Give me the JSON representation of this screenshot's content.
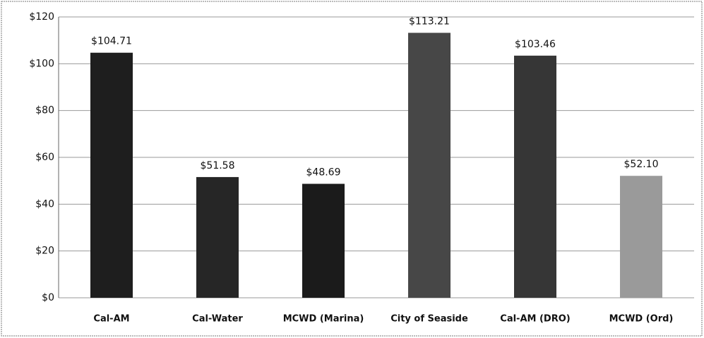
{
  "chart_data": {
    "type": "bar",
    "categories": [
      "Cal-AM",
      "Cal-Water",
      "MCWD (Marina)",
      "City of Seaside",
      "Cal-AM (DRO)",
      "MCWD (Ord)"
    ],
    "values": [
      104.71,
      51.58,
      48.69,
      113.21,
      103.46,
      52.1
    ],
    "value_labels": [
      "$104.71",
      "$51.58",
      "$48.69",
      "$113.21",
      "$103.46",
      "$52.10"
    ],
    "colors": [
      "#1e1e1e",
      "#262626",
      "#1b1b1b",
      "#474747",
      "#363636",
      "#9a9a9a"
    ],
    "ylim": [
      0,
      120
    ],
    "yticks": [
      {
        "value": 0,
        "label": "$0"
      },
      {
        "value": 20,
        "label": "$20"
      },
      {
        "value": 40,
        "label": "$40"
      },
      {
        "value": 60,
        "label": "$60"
      },
      {
        "value": 80,
        "label": "$80"
      },
      {
        "value": 100,
        "label": "$100"
      },
      {
        "value": 120,
        "label": "$120"
      }
    ],
    "grid": true
  }
}
